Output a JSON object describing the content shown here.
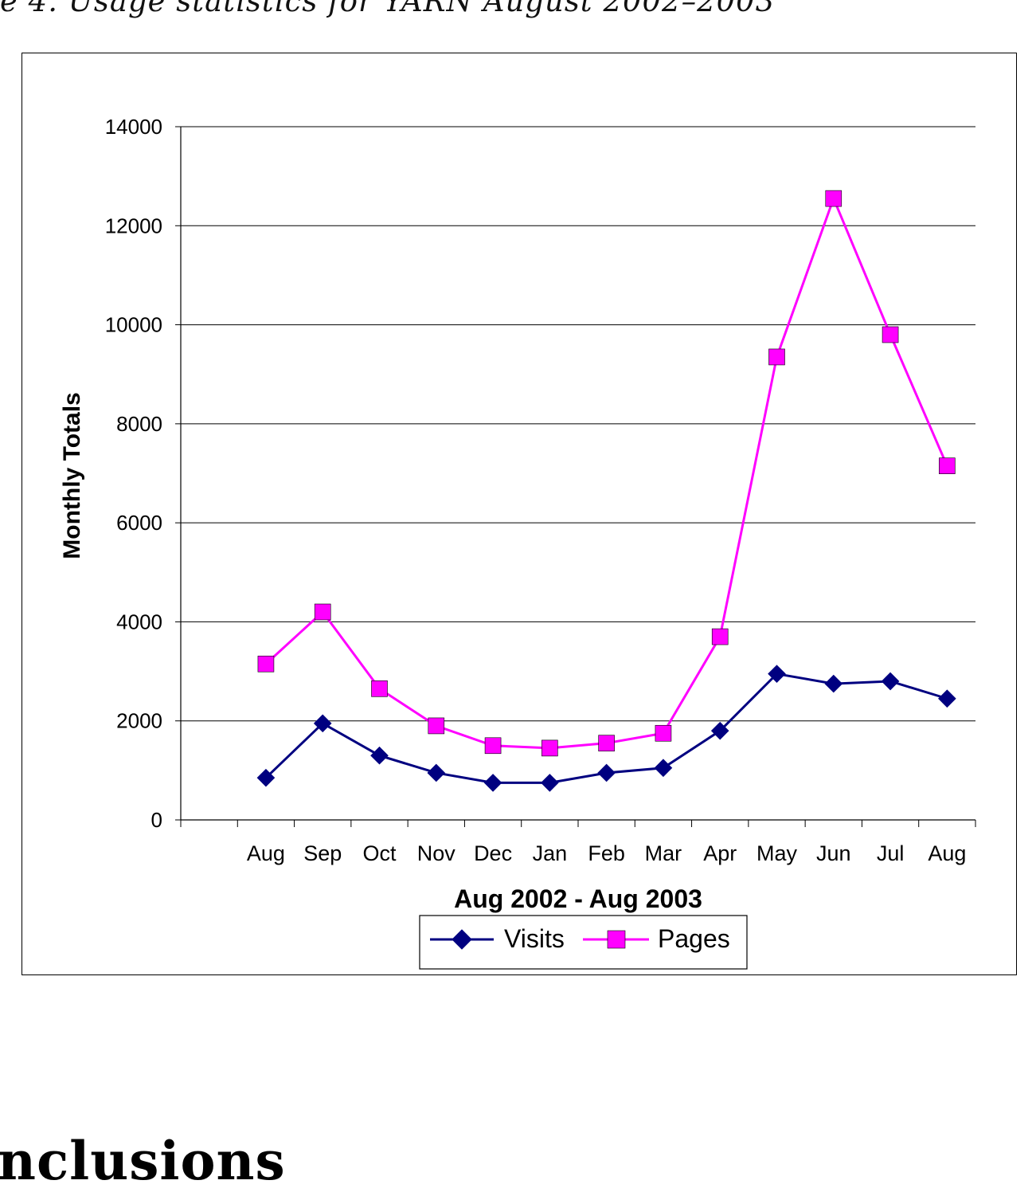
{
  "caption": "e 4. Usage statistics for YARN August 2002–2003",
  "section_heading": "nclusions",
  "colors": {
    "visits": "#000080",
    "pages": "#FF00FF",
    "grid": "#000000"
  },
  "chart_data": {
    "type": "line",
    "title": "",
    "xlabel": "Aug 2002 - Aug 2003",
    "ylabel": "Monthly Totals",
    "ylim": [
      0,
      14000
    ],
    "yticks": [
      0,
      2000,
      4000,
      6000,
      8000,
      10000,
      12000,
      14000
    ],
    "grid": true,
    "legend_position": "bottom",
    "categories": [
      "Aug",
      "Sep",
      "Oct",
      "Nov",
      "Dec",
      "Jan",
      "Feb",
      "Mar",
      "Apr",
      "May",
      "Jun",
      "Jul",
      "Aug"
    ],
    "series": [
      {
        "name": "Visits",
        "marker": "diamond",
        "values": [
          850,
          1950,
          1300,
          950,
          750,
          750,
          950,
          1050,
          1800,
          2950,
          2750,
          2800,
          2450
        ]
      },
      {
        "name": "Pages",
        "marker": "square",
        "values": [
          3150,
          4200,
          2650,
          1900,
          1500,
          1450,
          1550,
          1750,
          3700,
          9350,
          12550,
          9800,
          7150
        ]
      }
    ]
  }
}
